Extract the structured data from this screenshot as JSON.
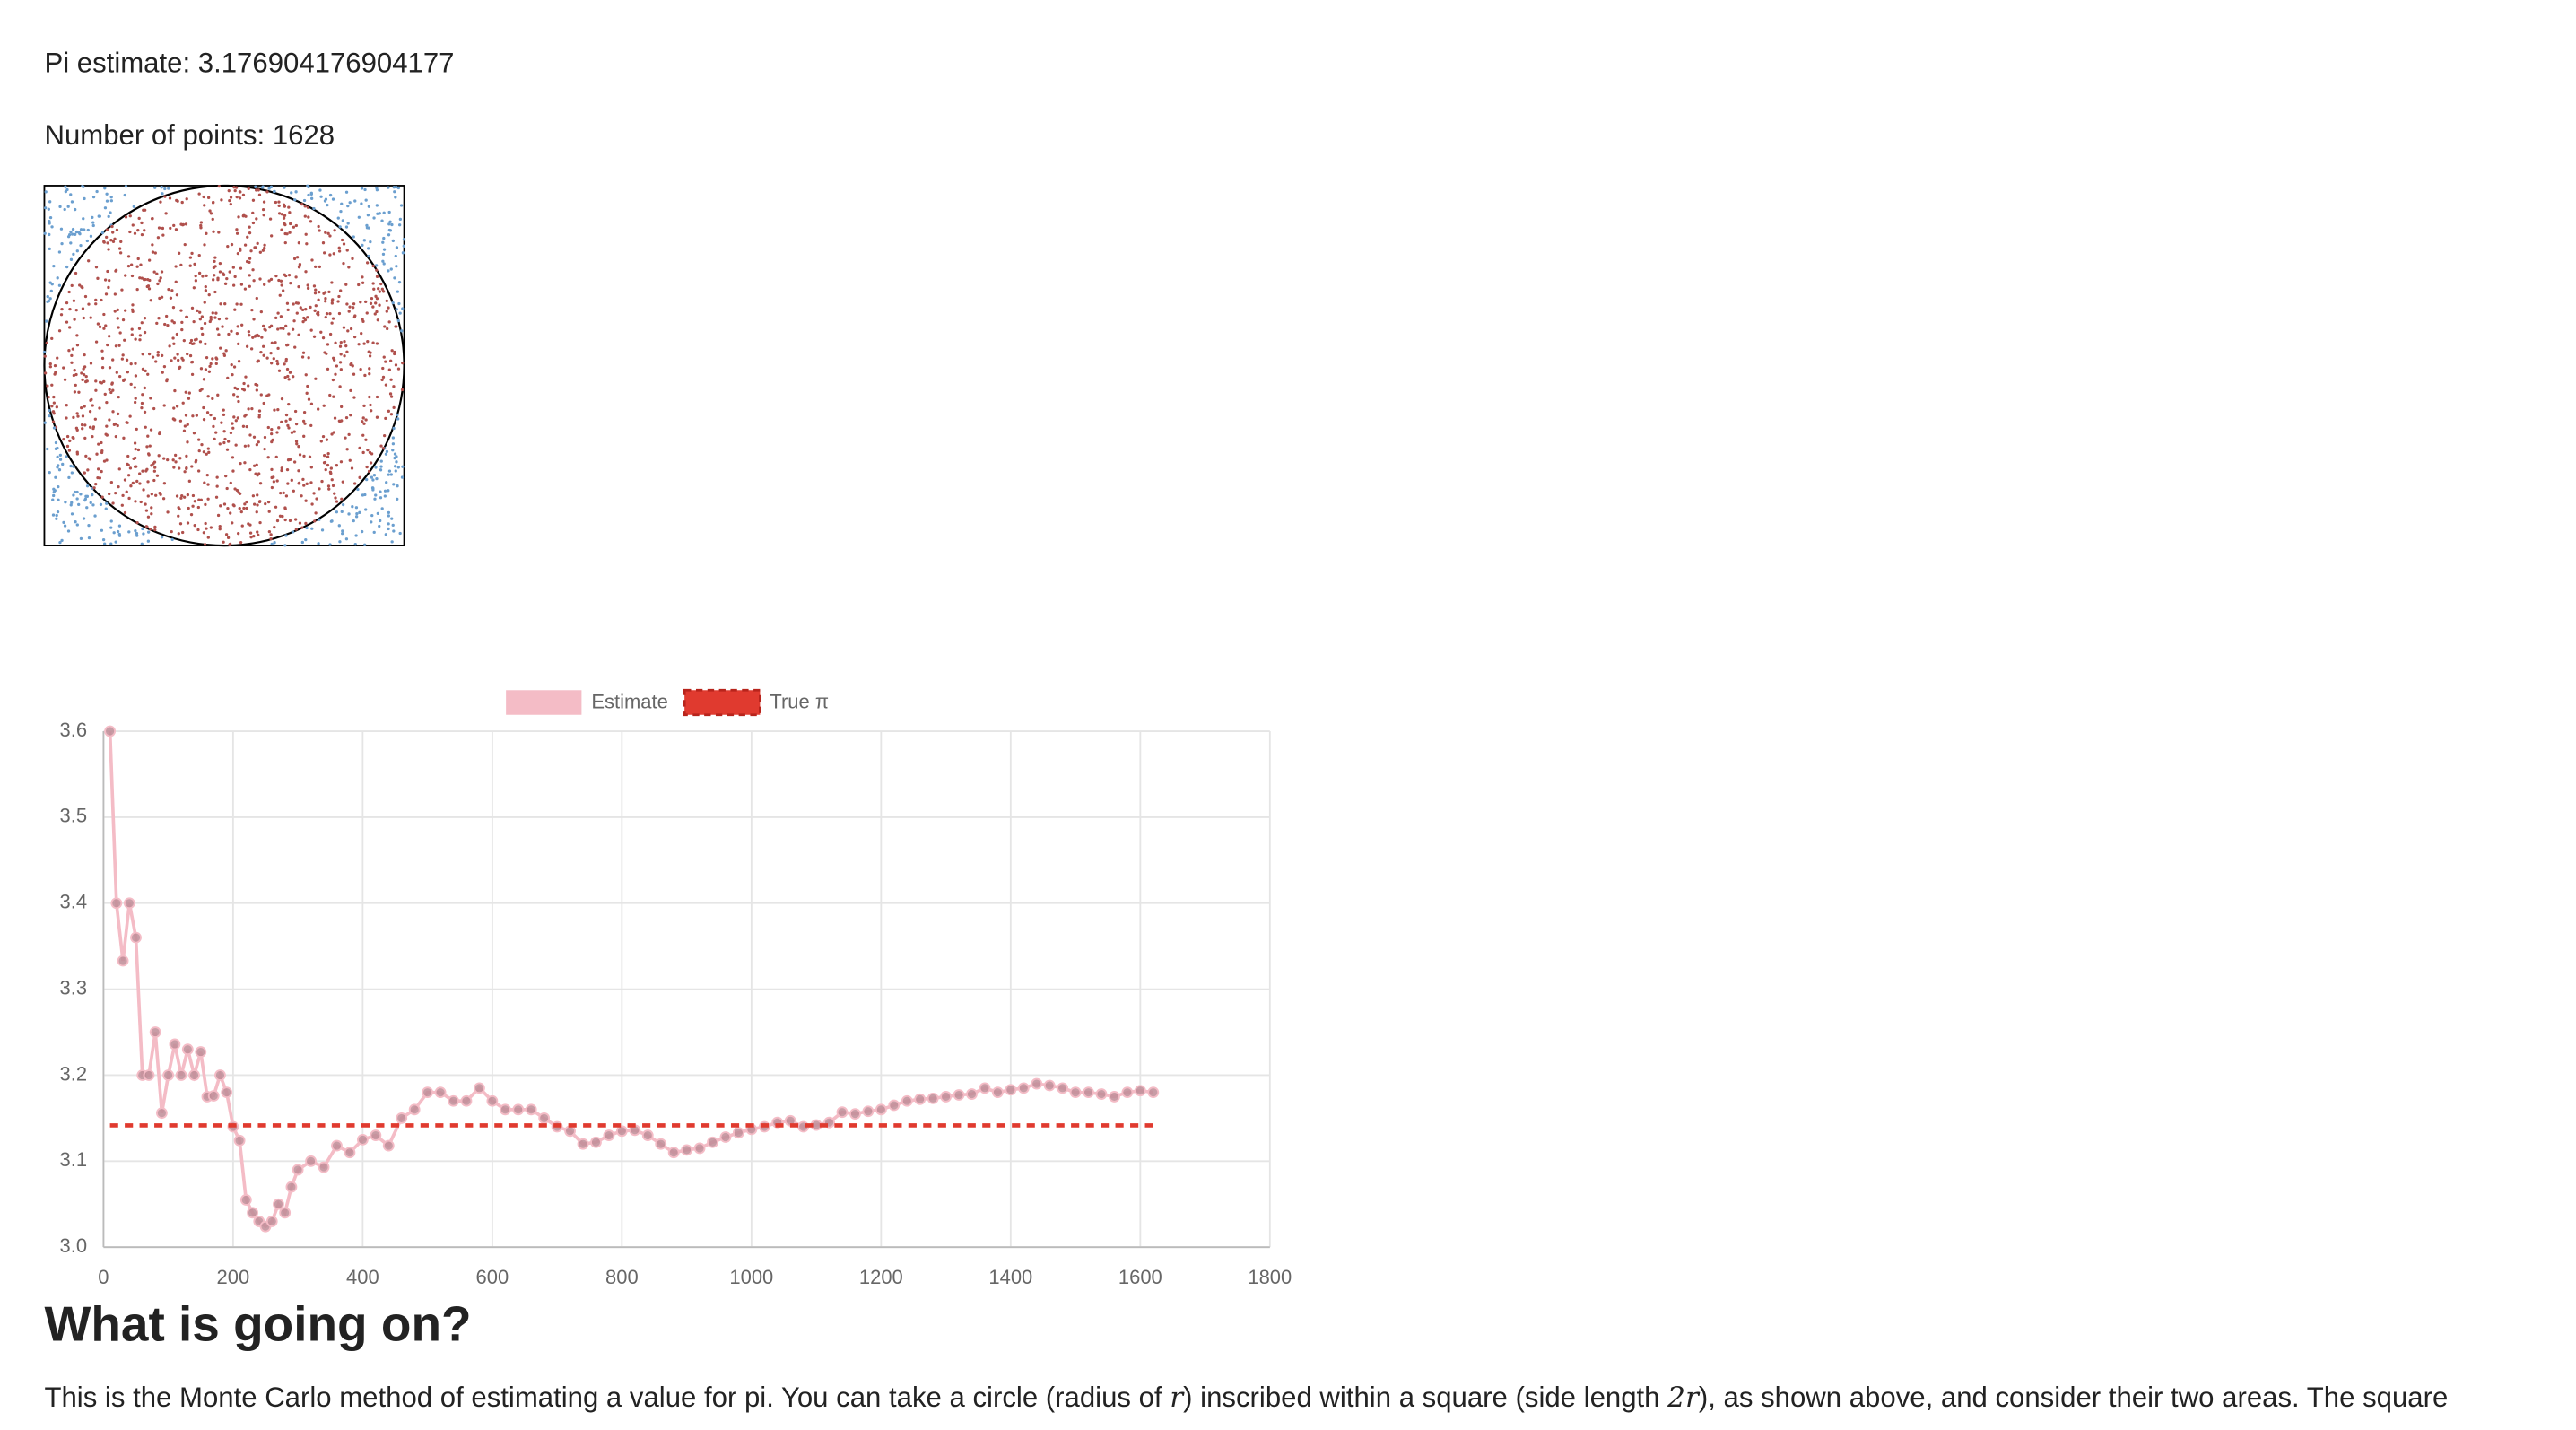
{
  "header": {
    "estimate": "Pi estimate: 3.176904176904177",
    "points": "Number of points: 1628",
    "count": 1628
  },
  "chart_data": {
    "type": "line",
    "series": [
      {
        "name": "Estimate",
        "color": "#f4bcc6",
        "x": [
          10,
          20,
          30,
          40,
          50,
          60,
          70,
          80,
          90,
          100,
          110,
          120,
          130,
          140,
          150,
          160,
          170,
          180,
          190,
          200,
          210,
          220,
          230,
          240,
          250,
          260,
          270,
          280,
          290,
          300,
          320,
          340,
          360,
          380,
          400,
          420,
          440,
          460,
          480,
          500,
          520,
          540,
          560,
          580,
          600,
          620,
          640,
          660,
          680,
          700,
          720,
          740,
          760,
          780,
          800,
          820,
          840,
          860,
          880,
          900,
          920,
          940,
          960,
          980,
          1000,
          1020,
          1040,
          1060,
          1080,
          1100,
          1120,
          1140,
          1160,
          1180,
          1200,
          1220,
          1240,
          1260,
          1280,
          1300,
          1320,
          1340,
          1360,
          1380,
          1400,
          1420,
          1440,
          1460,
          1480,
          1500,
          1520,
          1540,
          1560,
          1580,
          1600,
          1620
        ],
        "values": [
          3.6,
          3.4,
          3.333,
          3.4,
          3.36,
          3.2,
          3.2,
          3.25,
          3.156,
          3.2,
          3.236,
          3.2,
          3.23,
          3.2,
          3.227,
          3.175,
          3.176,
          3.2,
          3.18,
          3.14,
          3.124,
          3.055,
          3.04,
          3.03,
          3.024,
          3.03,
          3.05,
          3.04,
          3.07,
          3.09,
          3.1,
          3.093,
          3.118,
          3.11,
          3.125,
          3.13,
          3.118,
          3.15,
          3.16,
          3.18,
          3.18,
          3.17,
          3.17,
          3.185,
          3.17,
          3.16,
          3.16,
          3.16,
          3.15,
          3.14,
          3.135,
          3.12,
          3.122,
          3.13,
          3.135,
          3.136,
          3.13,
          3.12,
          3.11,
          3.113,
          3.115,
          3.122,
          3.128,
          3.133,
          3.137,
          3.14,
          3.145,
          3.147,
          3.14,
          3.142,
          3.145,
          3.157,
          3.155,
          3.158,
          3.16,
          3.165,
          3.17,
          3.172,
          3.173,
          3.175,
          3.177,
          3.178,
          3.185,
          3.18,
          3.183,
          3.185,
          3.19,
          3.188,
          3.185,
          3.18,
          3.18,
          3.178,
          3.175,
          3.18,
          3.182,
          3.18
        ]
      },
      {
        "name": "True π",
        "color": "#e03a2f",
        "dashed": true,
        "x": [
          10,
          1620
        ],
        "values": [
          3.14159,
          3.14159
        ]
      }
    ],
    "xlim": [
      0,
      1800
    ],
    "xticks": [
      0,
      200,
      400,
      600,
      800,
      1000,
      1200,
      1400,
      1600,
      1800
    ],
    "ylim": [
      3,
      3.6
    ],
    "yticks": [
      {
        "value": 3,
        "label": "3.0"
      },
      3.1,
      3.2,
      3.3,
      3.4,
      3.5,
      3.6
    ],
    "grid": true
  },
  "section": {
    "heading": "What is going on?",
    "paragraph": [
      "This is the Monte Carlo method of estimating a value for pi. You can take a circle (radius of ",
      "r",
      ") inscribed within a square (side length ",
      "2r",
      "), as shown above, and consider their two areas. The square"
    ]
  }
}
